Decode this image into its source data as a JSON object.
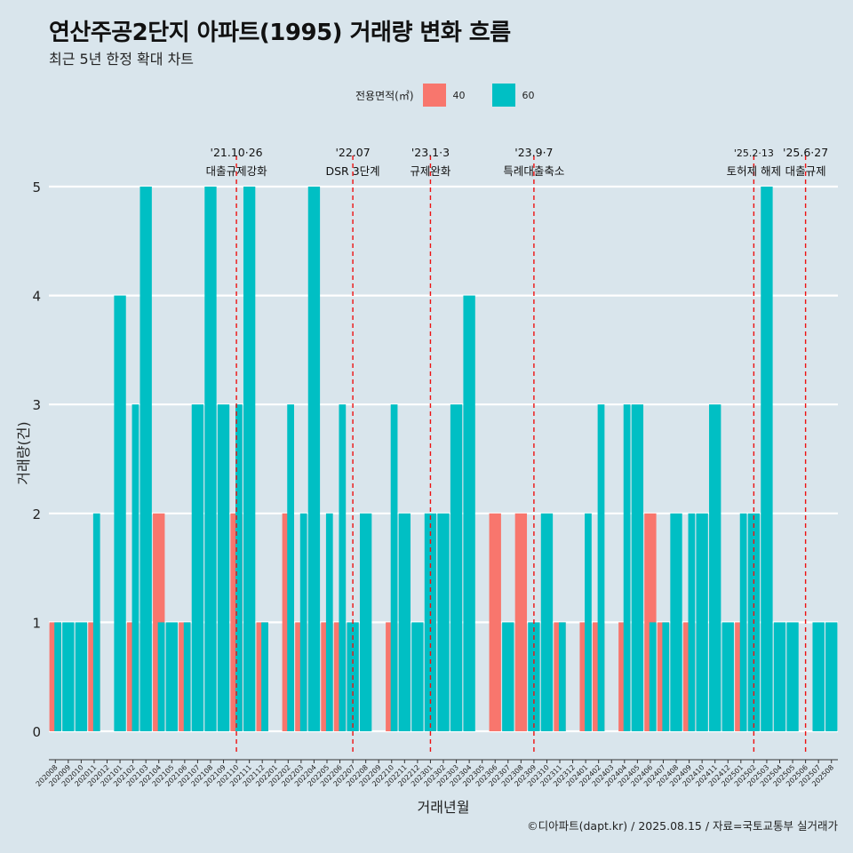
{
  "title": "연산주공2단지 아파트(1995) 거래량 변화 흐름",
  "subtitle": "최근 5년 한정 확대 차트",
  "caption": "©디아파트(dapt.kr) / 2025.08.15 / 자료=국토교통부 실거래가",
  "legend": {
    "title": "전용면적(㎡)",
    "items": [
      {
        "label": "40",
        "color": "#f8766d"
      },
      {
        "label": "60",
        "color": "#00bfc4"
      }
    ]
  },
  "chart_data": {
    "type": "bar",
    "title": "연산주공2단지 아파트(1995) 거래량 변화 흐름",
    "subtitle": "최근 5년 한정 확대 차트",
    "xlabel": "거래년월",
    "ylabel": "거래량(건)",
    "ylim": [
      0,
      5
    ],
    "yticks": [
      0,
      1,
      2,
      3,
      4,
      5
    ],
    "grid": true,
    "legend_position": "top",
    "categories": [
      "202008",
      "202009",
      "202010",
      "202011",
      "202012",
      "202101",
      "202102",
      "202103",
      "202104",
      "202105",
      "202106",
      "202107",
      "202108",
      "202109",
      "202110",
      "202111",
      "202112",
      "202201",
      "202202",
      "202203",
      "202204",
      "202205",
      "202206",
      "202207",
      "202208",
      "202209",
      "202210",
      "202211",
      "202212",
      "202301",
      "202302",
      "202303",
      "202304",
      "202305",
      "202306",
      "202307",
      "202308",
      "202309",
      "202310",
      "202311",
      "202312",
      "202401",
      "202402",
      "202403",
      "202404",
      "202405",
      "202406",
      "202407",
      "202408",
      "202409",
      "202410",
      "202411",
      "202412",
      "202501",
      "202502",
      "202503",
      "202504",
      "202505",
      "202506",
      "202507",
      "202508"
    ],
    "series": [
      {
        "name": "40",
        "color": "#f8766d",
        "values": [
          1,
          0,
          0,
          1,
          0,
          0,
          1,
          0,
          2,
          0,
          1,
          0,
          0,
          0,
          2,
          0,
          1,
          0,
          2,
          1,
          0,
          1,
          1,
          0,
          0,
          0,
          1,
          0,
          0,
          0,
          0,
          0,
          0,
          0,
          2,
          0,
          2,
          0,
          0,
          1,
          0,
          1,
          1,
          0,
          1,
          0,
          2,
          1,
          0,
          1,
          0,
          0,
          0,
          1,
          0,
          0,
          0,
          0,
          0,
          0,
          0
        ]
      },
      {
        "name": "60",
        "color": "#00bfc4",
        "values": [
          1,
          1,
          1,
          2,
          0,
          4,
          3,
          5,
          1,
          1,
          1,
          3,
          5,
          3,
          3,
          5,
          1,
          0,
          3,
          2,
          5,
          2,
          3,
          1,
          2,
          0,
          3,
          2,
          1,
          2,
          2,
          3,
          4,
          0,
          0,
          1,
          0,
          1,
          2,
          1,
          0,
          2,
          3,
          0,
          3,
          3,
          1,
          1,
          2,
          2,
          2,
          3,
          1,
          2,
          2,
          5,
          1,
          1,
          0,
          1,
          1
        ]
      }
    ],
    "annotations": [
      {
        "x": "202110",
        "date": "'21.10·26",
        "label": "대출규제강화"
      },
      {
        "x": "202207",
        "date": "'22.07",
        "label": "DSR 3단계"
      },
      {
        "x": "202301",
        "date": "'23.1·3",
        "label": "규제완화"
      },
      {
        "x": "202309",
        "date": "'23.9·7",
        "label": "특례대출축소"
      },
      {
        "x": "202502",
        "date": "'25.2·13",
        "label": "토허제 해제"
      },
      {
        "x": "202506",
        "date": "'25.6·27",
        "label": "대출규제"
      }
    ]
  }
}
